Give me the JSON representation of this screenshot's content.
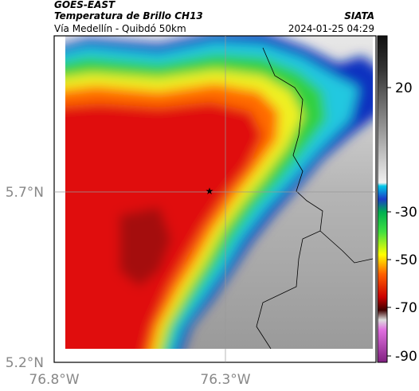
{
  "header": {
    "source": "GOES-EAST",
    "title": "Temperatura de Brillo CH13",
    "organization": "SIATA",
    "subtitle": "Vía Medellín - Quibdó 50km",
    "datetime": "2024-01-25 04:29"
  },
  "axes": {
    "latitude_labels": [
      "5.7°N",
      "5.2°N"
    ],
    "longitude_labels": [
      "76.8°W",
      "76.3°W"
    ]
  },
  "colorbar": {
    "ticks": [
      20,
      -30,
      -50,
      -70,
      -90
    ]
  }
}
